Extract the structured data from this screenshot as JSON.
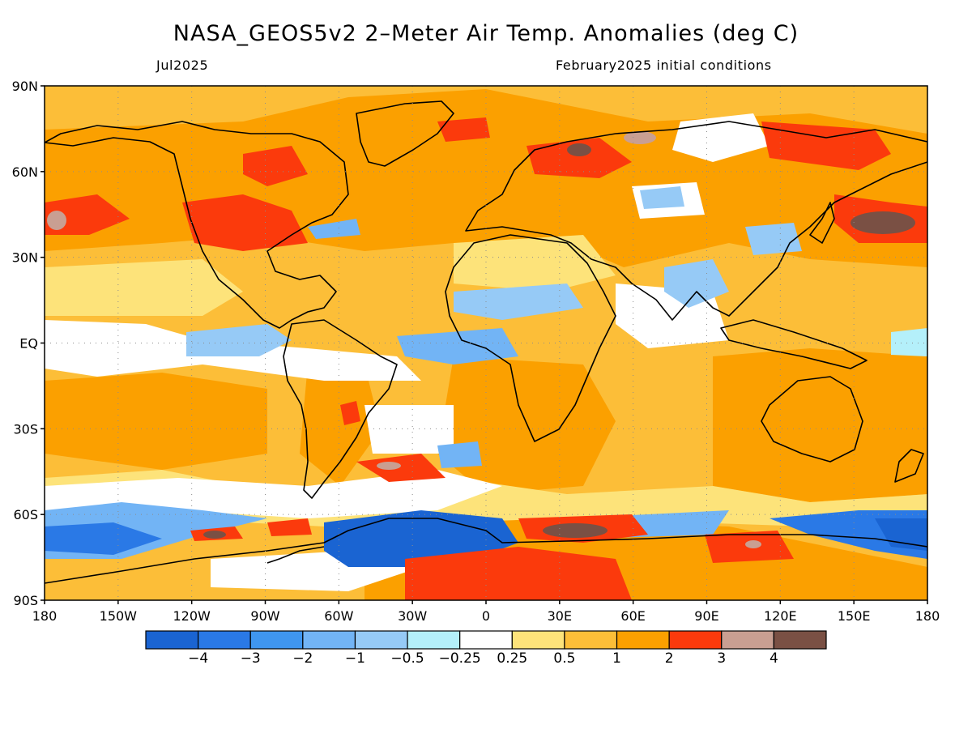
{
  "title": "NASA_GEOS5v2 2–Meter Air Temp. Anomalies (deg C)",
  "subtitle_left": "Jul2025",
  "subtitle_right": "February2025 initial conditions",
  "lat_ticks": [
    "90N",
    "60N",
    "30N",
    "EQ",
    "30S",
    "60S",
    "90S"
  ],
  "lon_ticks": [
    "180",
    "150W",
    "120W",
    "90W",
    "60W",
    "30W",
    "0",
    "30E",
    "60E",
    "90E",
    "120E",
    "150E",
    "180"
  ],
  "colorbar": {
    "colors": [
      "#1a64d2",
      "#2a79e6",
      "#3f96f0",
      "#72b4f5",
      "#96caf6",
      "#b4f0fa",
      "#ffffff",
      "#fde37a",
      "#fcbe38",
      "#fba000",
      "#fb3a0c",
      "#c99f92",
      "#7a5044"
    ],
    "labels": [
      "−4",
      "−3",
      "−2",
      "−1",
      "−0.5",
      "−0.25",
      "0.25",
      "0.5",
      "1",
      "2",
      "3",
      "4"
    ]
  },
  "palette": {
    "vcold": "#1a64d2",
    "cold": "#2a79e6",
    "cool": "#3f96f0",
    "blue": "#72b4f5",
    "lightblue": "#96caf6",
    "cyan": "#b4f0fa",
    "white": "#ffffff",
    "lightyellow": "#fde37a",
    "yellow": "#fcbe38",
    "orange": "#fba000",
    "red": "#fb3a0c",
    "pinkgrey": "#c99f92",
    "brown": "#7a5044",
    "coast": "#000000",
    "grid": "#8c8c8c"
  }
}
